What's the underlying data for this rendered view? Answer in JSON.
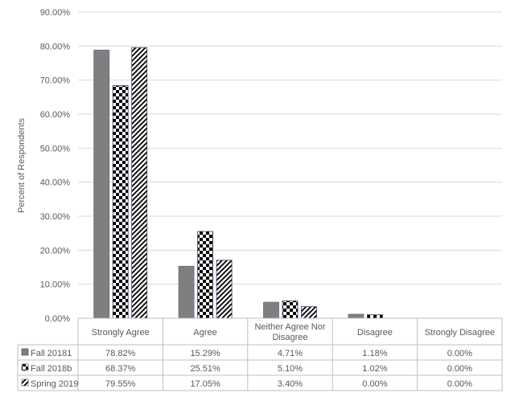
{
  "chart_data": {
    "type": "bar",
    "title": "",
    "xlabel": "",
    "ylabel": "Percent of Respondents",
    "ylim": [
      0,
      90
    ],
    "yticks": [
      "0.00%",
      "10.00%",
      "20.00%",
      "30.00%",
      "40.00%",
      "50.00%",
      "60.00%",
      "70.00%",
      "80.00%",
      "90.00%"
    ],
    "categories": [
      "Strongly Agree",
      "Agree",
      "Neither Agree Nor Disagree",
      "Disagree",
      "Strongly Disagree"
    ],
    "category_lines": [
      [
        "Strongly Agree"
      ],
      [
        "Agree"
      ],
      [
        "Neither Agree Nor",
        "Disagree"
      ],
      [
        "Disagree"
      ],
      [
        "Strongly Disagree"
      ]
    ],
    "grid": true,
    "legend": "data-table",
    "series": [
      {
        "name": "Fall 20181",
        "fill": "solid-gray",
        "color": "#7f7f7f",
        "values": [
          78.82,
          15.29,
          4.71,
          1.18,
          0.0
        ],
        "labels": [
          "78.82%",
          "15.29%",
          "4.71%",
          "1.18%",
          "0.00%"
        ]
      },
      {
        "name": "Fall 2018b",
        "fill": "checkerboard",
        "color": "#000000",
        "values": [
          68.37,
          25.51,
          5.1,
          1.02,
          0.0
        ],
        "labels": [
          "68.37%",
          "25.51%",
          "5.10%",
          "1.02%",
          "0.00%"
        ]
      },
      {
        "name": "Spring 2019",
        "fill": "diagonal-stripes",
        "color": "#000000",
        "values": [
          79.55,
          17.05,
          3.4,
          0.0,
          0.0
        ],
        "labels": [
          "79.55%",
          "17.05%",
          "3.40%",
          "0.00%",
          "0.00%"
        ]
      }
    ]
  }
}
